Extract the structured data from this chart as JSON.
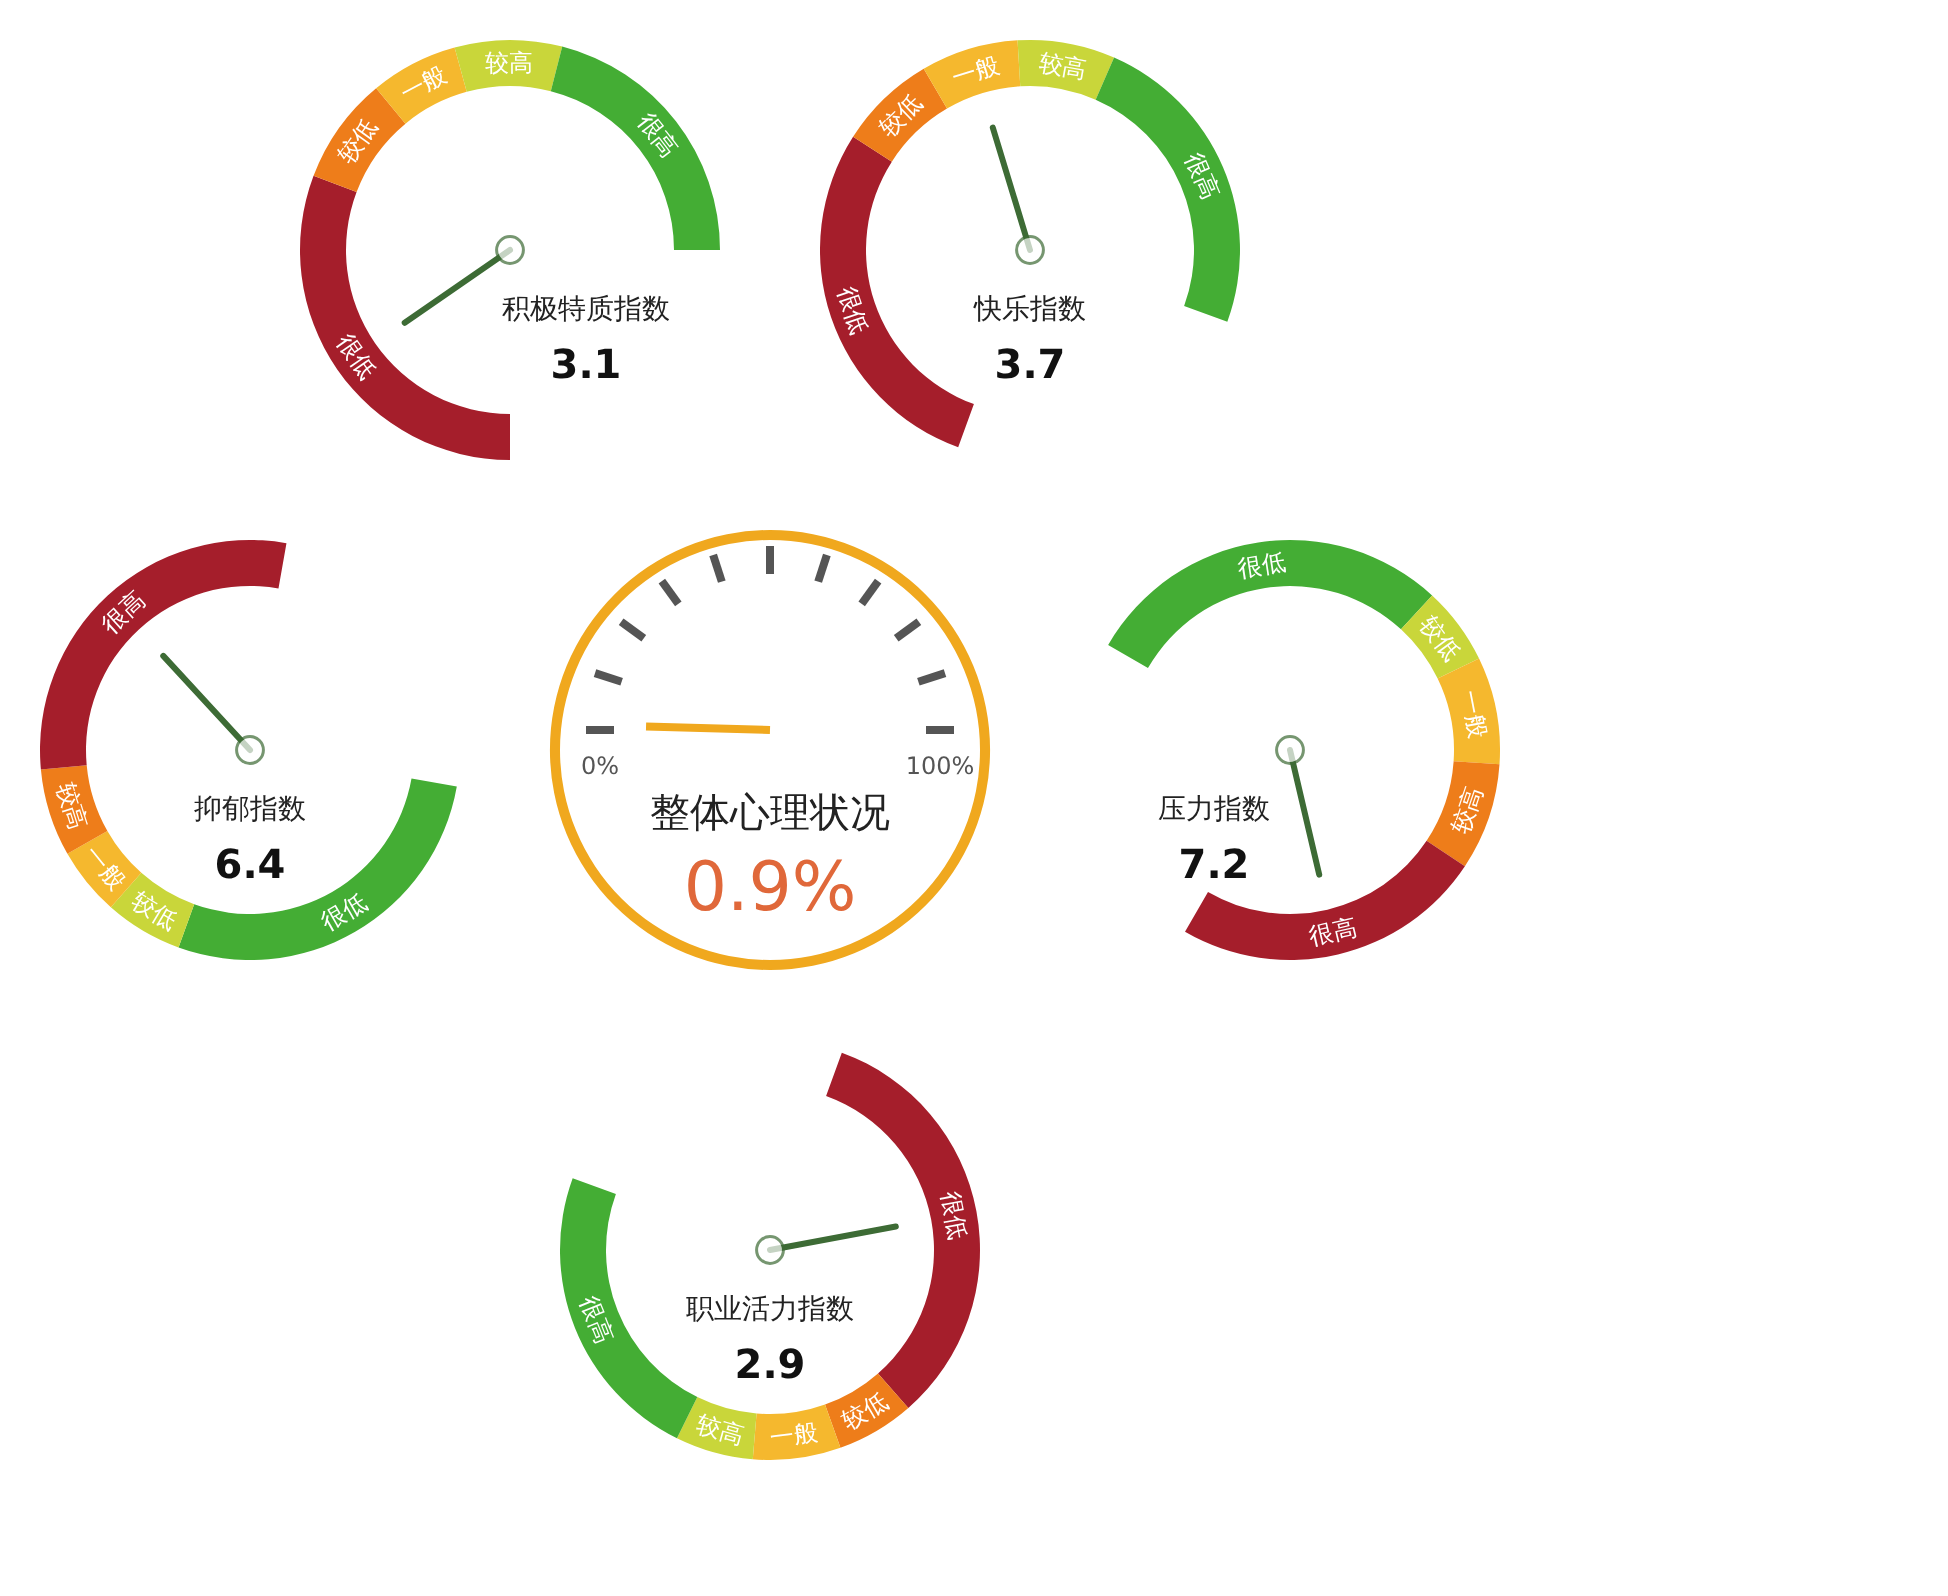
{
  "chart_data": [
    {
      "type": "donut",
      "title": "积极特质指数",
      "annotations": [
        "3.1"
      ],
      "categories": [
        "很低",
        "较低",
        "一般",
        "较高",
        "很高"
      ],
      "values": [
        41,
        11,
        9,
        11,
        28
      ],
      "colors": [
        "#a51e2b",
        "#ee7d1a",
        "#f5b82e",
        "#c9d63a",
        "#44ad34"
      ],
      "needle": "很低"
    },
    {
      "type": "donut",
      "title": "快乐指数",
      "annotations": [
        "3.7"
      ],
      "categories": [
        "很低",
        "较低",
        "一般",
        "较高",
        "很高"
      ],
      "values": [
        38,
        10,
        10,
        10,
        32
      ],
      "colors": [
        "#a51e2b",
        "#ee7d1a",
        "#f5b82e",
        "#c9d63a",
        "#44ad34"
      ],
      "needle": "一般"
    },
    {
      "type": "other",
      "title": "整体心理状况",
      "values": [
        0.9
      ],
      "value_labels": [
        "0.9%"
      ],
      "color": "#f0a81e",
      "annotations": [
        "0%",
        "100%"
      ]
    },
    {
      "type": "donut",
      "title": "压力指数",
      "annotations": [
        "7.2"
      ],
      "categories": [
        "很低",
        "较低",
        "一般",
        "较高",
        "很高"
      ],
      "values": [
        38,
        8,
        11,
        11,
        32
      ],
      "colors": [
        "#44ad34",
        "#c9d63a",
        "#f5b82e",
        "#ee7d1a",
        "#a51e2b"
      ],
      "needle": "很高"
    },
    {
      "type": "donut",
      "title": "抑郁指数",
      "annotations": [
        "6.4"
      ],
      "categories": [
        "很低",
        "较低",
        "一般",
        "较高",
        "很高"
      ],
      "values": [
        37,
        8,
        7,
        9,
        39
      ],
      "colors": [
        "#44ad34",
        "#c9d63a",
        "#f5b82e",
        "#ee7d1a",
        "#a51e2b"
      ],
      "needle": "很高"
    },
    {
      "type": "donut",
      "title": "职业活力指数",
      "annotations": [
        "2.9"
      ],
      "categories": [
        "很低",
        "较低",
        "一般",
        "较高",
        "很高"
      ],
      "values": [
        44,
        8,
        9,
        8,
        31
      ],
      "colors": [
        "#a51e2b",
        "#ee7d1a",
        "#f5b82e",
        "#c9d63a",
        "#44ad34"
      ],
      "needle": "很低"
    }
  ]
}
